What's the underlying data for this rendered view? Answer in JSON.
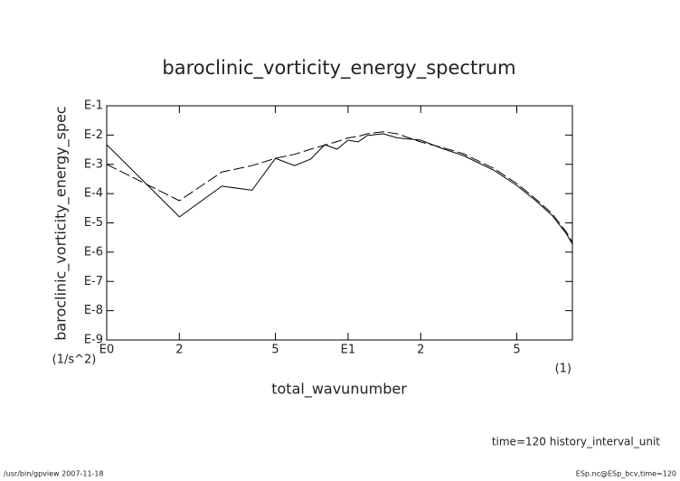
{
  "chart_data": {
    "type": "line",
    "title": "baroclinic_vorticity_energy_spectrum",
    "y_label": "baroclinic_vorticity_energy_spec",
    "y_unit": "(1/s^2)",
    "x_label": "total_wavunumber",
    "x_unit": "(1)",
    "annotation": "time=120 history_interval_unit",
    "footer_left": "/usr/bin/gpview   2007-11-18",
    "footer_right": "ESp.nc@ESp_bcv,time=120",
    "x_log": true,
    "y_log": true,
    "xlim": [
      1,
      85
    ],
    "ylim": [
      1e-09,
      0.1
    ],
    "xticks": [
      {
        "value": 1,
        "label": "E0"
      },
      2,
      5,
      {
        "value": 10,
        "label": "E1"
      },
      {
        "value": 20,
        "label": "2"
      },
      {
        "value": 50,
        "label": "5"
      }
    ],
    "yticks": [
      {
        "value": 0.1,
        "label": "E-1"
      },
      {
        "value": 0.01,
        "label": "E-2"
      },
      {
        "value": 0.001,
        "label": "E-3"
      },
      {
        "value": 0.0001,
        "label": "E-4"
      },
      {
        "value": 1e-05,
        "label": "E-5"
      },
      {
        "value": 1e-06,
        "label": "E-6"
      },
      {
        "value": 1e-07,
        "label": "E-7"
      },
      {
        "value": 1e-08,
        "label": "E-8"
      },
      {
        "value": 1e-09,
        "label": "E-9"
      }
    ],
    "x": [
      1,
      2,
      3,
      4,
      5,
      6,
      7,
      8,
      9,
      10,
      11,
      12,
      14,
      16,
      20,
      25,
      30,
      40,
      50,
      60,
      70,
      80,
      85
    ],
    "series": [
      {
        "color": "#000000",
        "dash": false,
        "values": [
          0.0047,
          1.6e-05,
          0.00018,
          0.00013,
          0.0016,
          0.0009,
          0.0015,
          0.0047,
          0.0033,
          0.0067,
          0.0058,
          0.0096,
          0.011,
          0.008,
          0.0067,
          0.0033,
          0.002,
          0.00064,
          0.00019,
          5.7e-05,
          1.8e-05,
          4.4e-06,
          1.9e-06
        ]
      },
      {
        "color": "#000000",
        "dash": true,
        "values": [
          0.001,
          5.7e-05,
          0.00055,
          0.0009,
          0.0016,
          0.0022,
          0.0033,
          0.0045,
          0.006,
          0.008,
          0.009,
          0.011,
          0.013,
          0.011,
          0.0058,
          0.0036,
          0.0023,
          0.00074,
          0.00022,
          6.5e-05,
          2.1e-05,
          5e-06,
          2.2e-06
        ]
      }
    ]
  }
}
